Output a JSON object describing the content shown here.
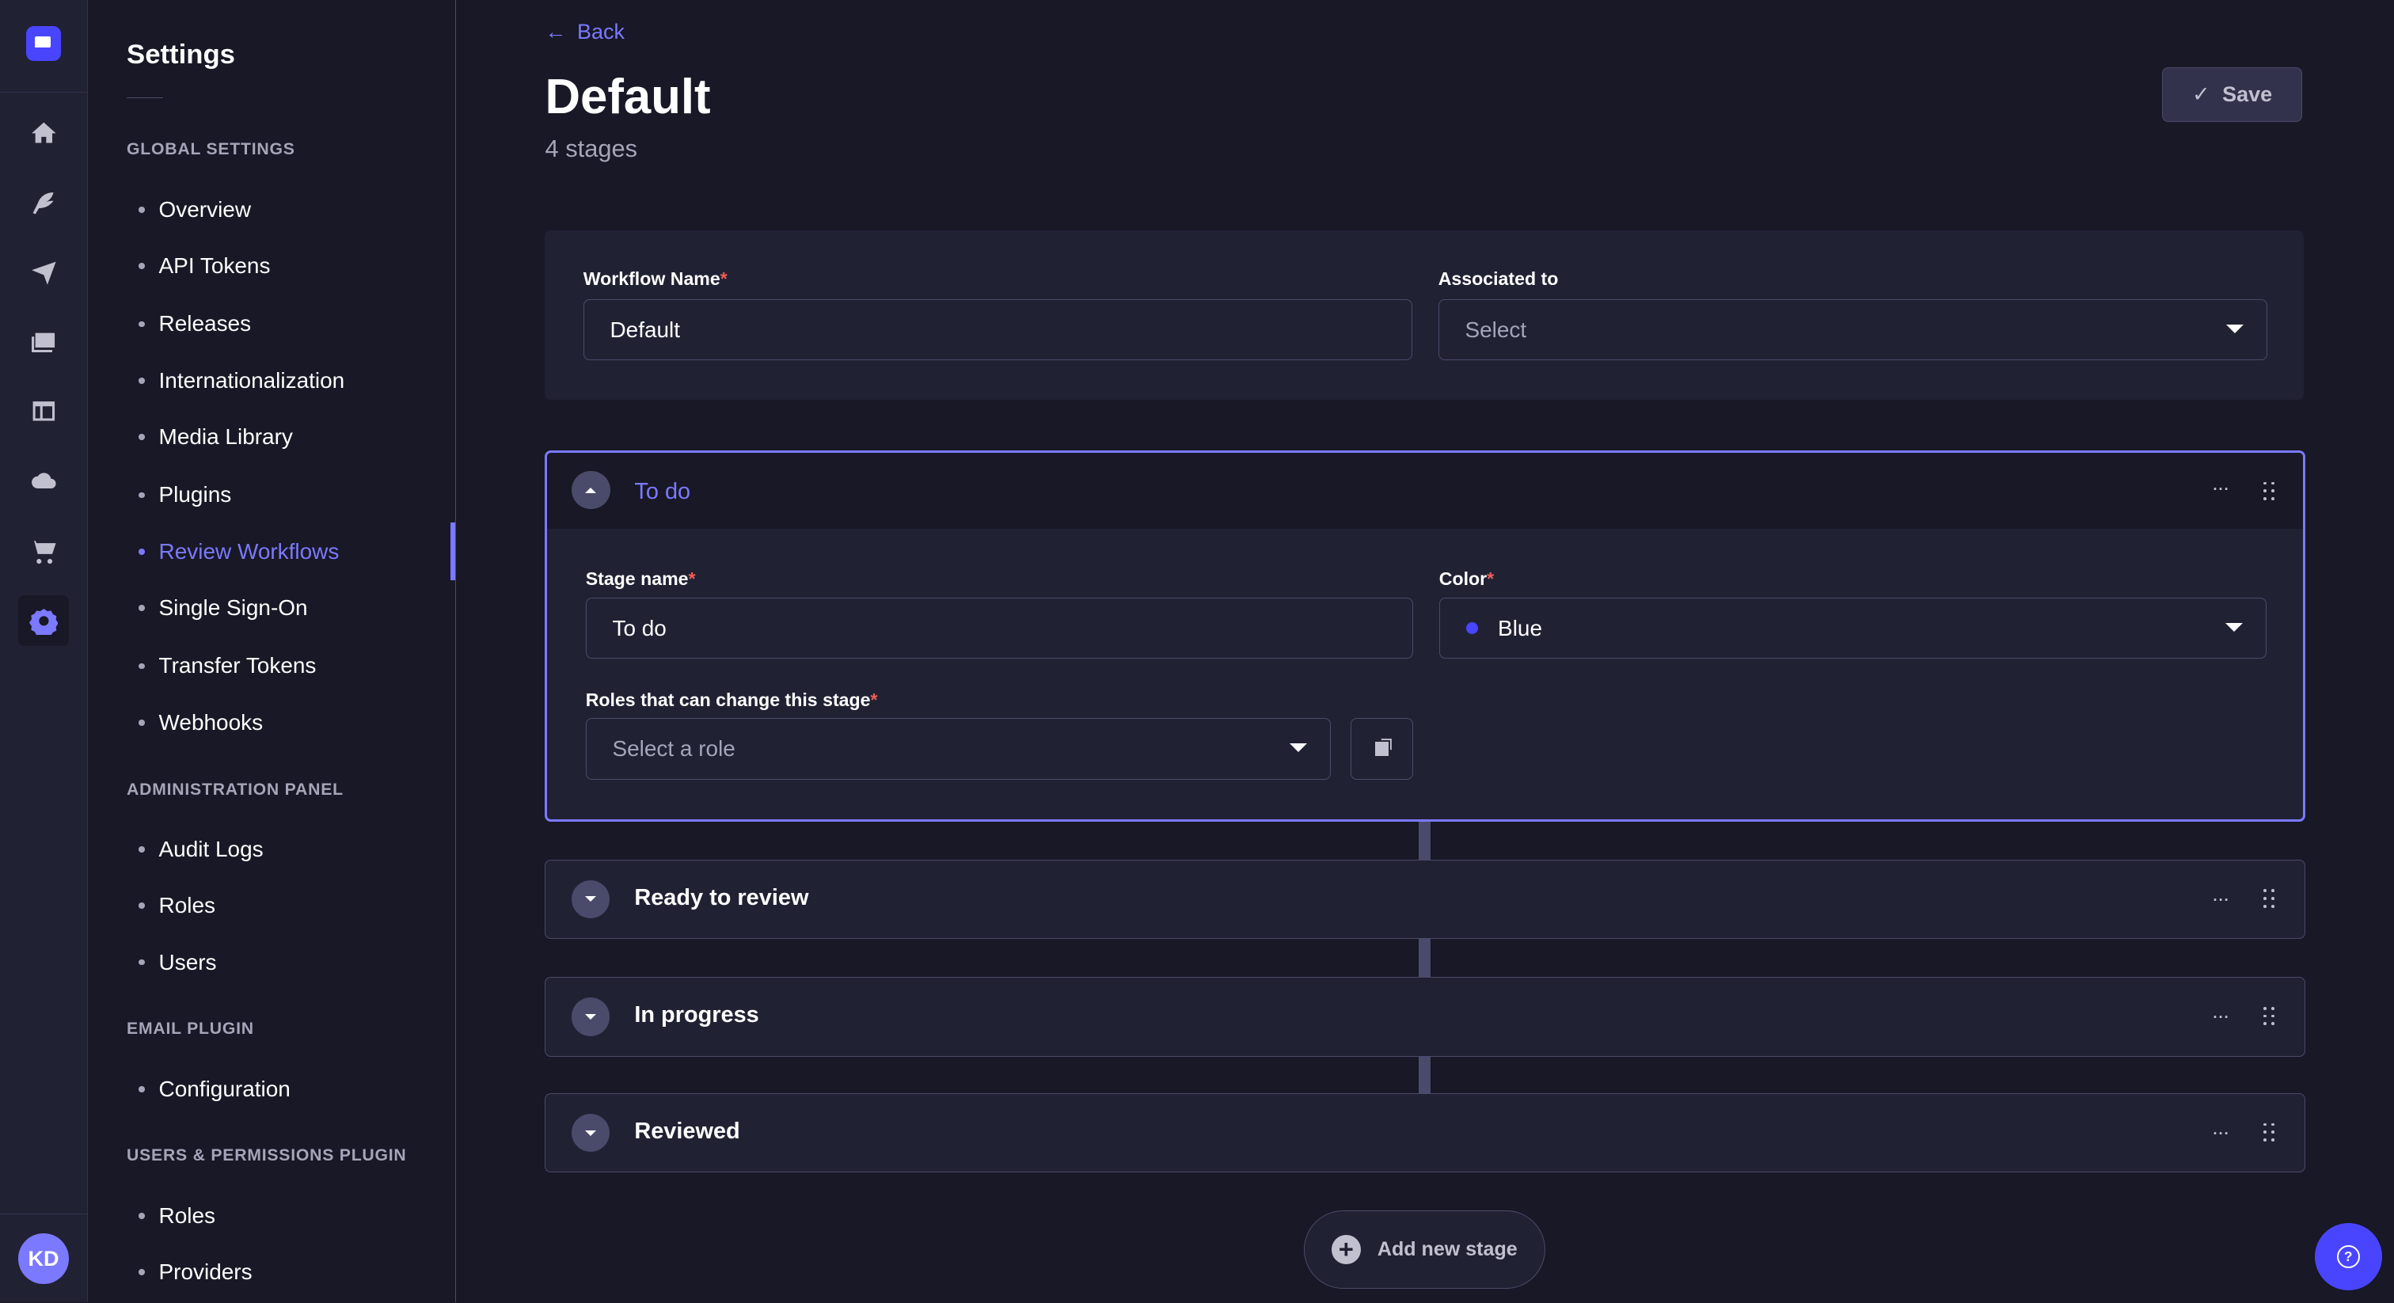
{
  "rail": {
    "icons": [
      "logo-icon",
      "home-icon",
      "feather-icon",
      "paper-plane-icon",
      "media-icon",
      "layout-icon",
      "cloud-icon",
      "cart-icon",
      "gear-icon"
    ],
    "avatar": "KD"
  },
  "sidebar": {
    "title": "Settings",
    "sections": [
      {
        "label": "GLOBAL SETTINGS",
        "items": [
          "Overview",
          "API Tokens",
          "Releases",
          "Internationalization",
          "Media Library",
          "Plugins",
          "Review Workflows",
          "Single Sign-On",
          "Transfer Tokens",
          "Webhooks"
        ]
      },
      {
        "label": "ADMINISTRATION PANEL",
        "items": [
          "Audit Logs",
          "Roles",
          "Users"
        ]
      },
      {
        "label": "EMAIL PLUGIN",
        "items": [
          "Configuration"
        ]
      },
      {
        "label": "USERS & PERMISSIONS PLUGIN",
        "items": [
          "Roles",
          "Providers"
        ]
      }
    ],
    "active": "Review Workflows"
  },
  "header": {
    "back": "Back",
    "title": "Default",
    "subtitle": "4 stages",
    "save": "Save"
  },
  "workflow": {
    "name_label": "Workflow Name",
    "name_value": "Default",
    "assoc_label": "Associated to",
    "assoc_placeholder": "Select",
    "required": "*"
  },
  "stages": [
    {
      "name": "To do",
      "expanded": true,
      "stage_name_label": "Stage name",
      "stage_name_value": "To do",
      "color_label": "Color",
      "color_value": "Blue",
      "color_hex": "#4945ff",
      "roles_label": "Roles that can change this stage",
      "roles_placeholder": "Select a role"
    },
    {
      "name": "Ready to review",
      "expanded": false
    },
    {
      "name": "In progress",
      "expanded": false
    },
    {
      "name": "Reviewed",
      "expanded": false
    }
  ],
  "add_stage": "Add new stage",
  "more": "···",
  "help_icon": "?",
  "colors": {
    "accent": "#7b79ff",
    "primary": "#4945ff",
    "bg": "#181826",
    "surface": "#212134",
    "required": "#ee5e52"
  }
}
